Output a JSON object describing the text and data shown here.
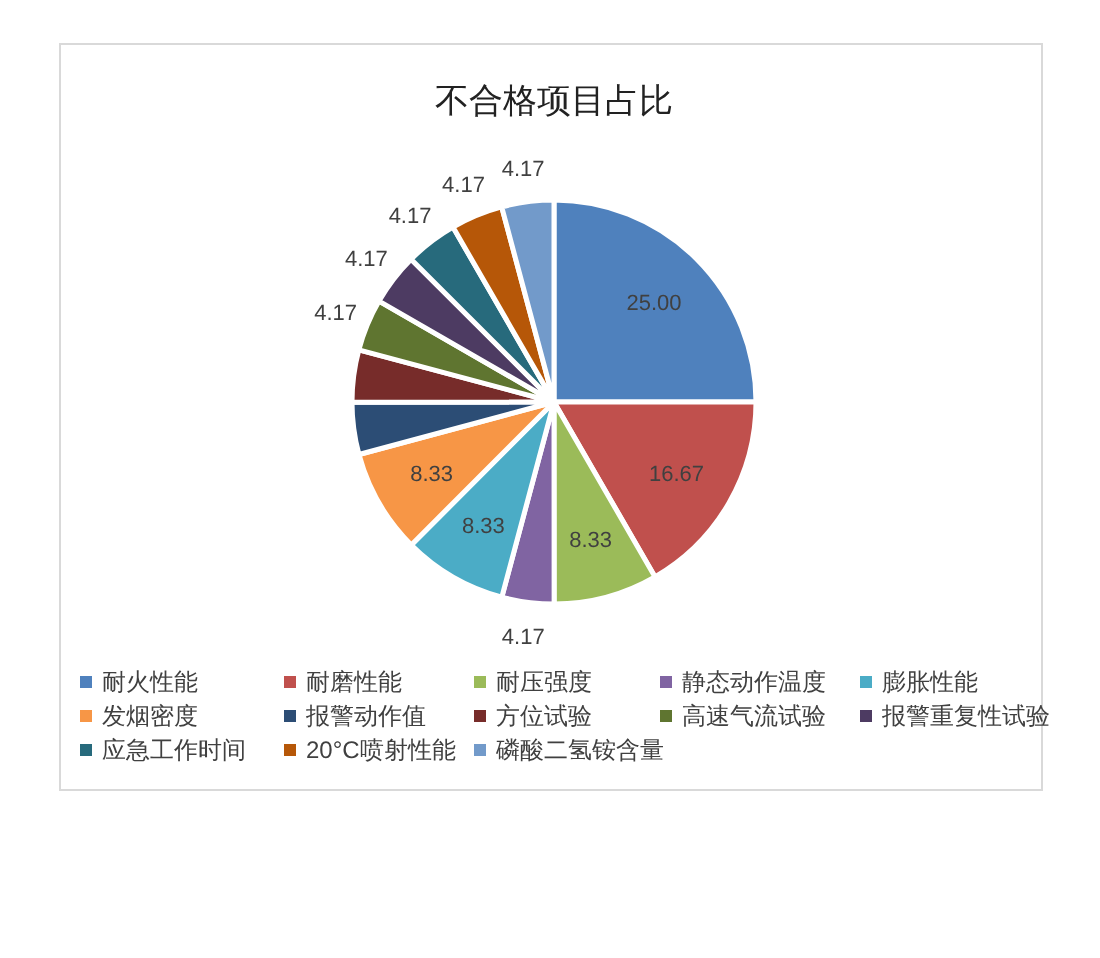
{
  "chart_data": {
    "type": "pie",
    "title": "不合格项目占比",
    "categories": [
      "耐火性能",
      "耐磨性能",
      "耐压强度",
      "静态动作温度",
      "膨胀性能",
      "发烟密度",
      "报警动作值",
      "方位试验",
      "高速气流试验",
      "报警重复性试验",
      "应急工作时间",
      "20°C喷射性能",
      "磷酸二氢铵含量"
    ],
    "values": [
      25.0,
      16.67,
      8.33,
      4.17,
      8.33,
      8.33,
      4.17,
      4.17,
      4.17,
      4.17,
      4.17,
      4.17,
      4.17
    ],
    "colors": [
      "#4f81bd",
      "#c0504d",
      "#9bbb59",
      "#8064a2",
      "#4bacc6",
      "#f79646",
      "#2c4d75",
      "#772c2a",
      "#5f7530",
      "#4d3b62",
      "#276a7c",
      "#b65708",
      "#729aca"
    ],
    "value_labels": [
      "25.00",
      "16.67",
      "8.33",
      "4.17",
      "8.33",
      "8.33",
      null,
      null,
      "4.17",
      "4.17",
      "4.17",
      "4.17",
      "4.17"
    ],
    "legend": "bottom"
  }
}
